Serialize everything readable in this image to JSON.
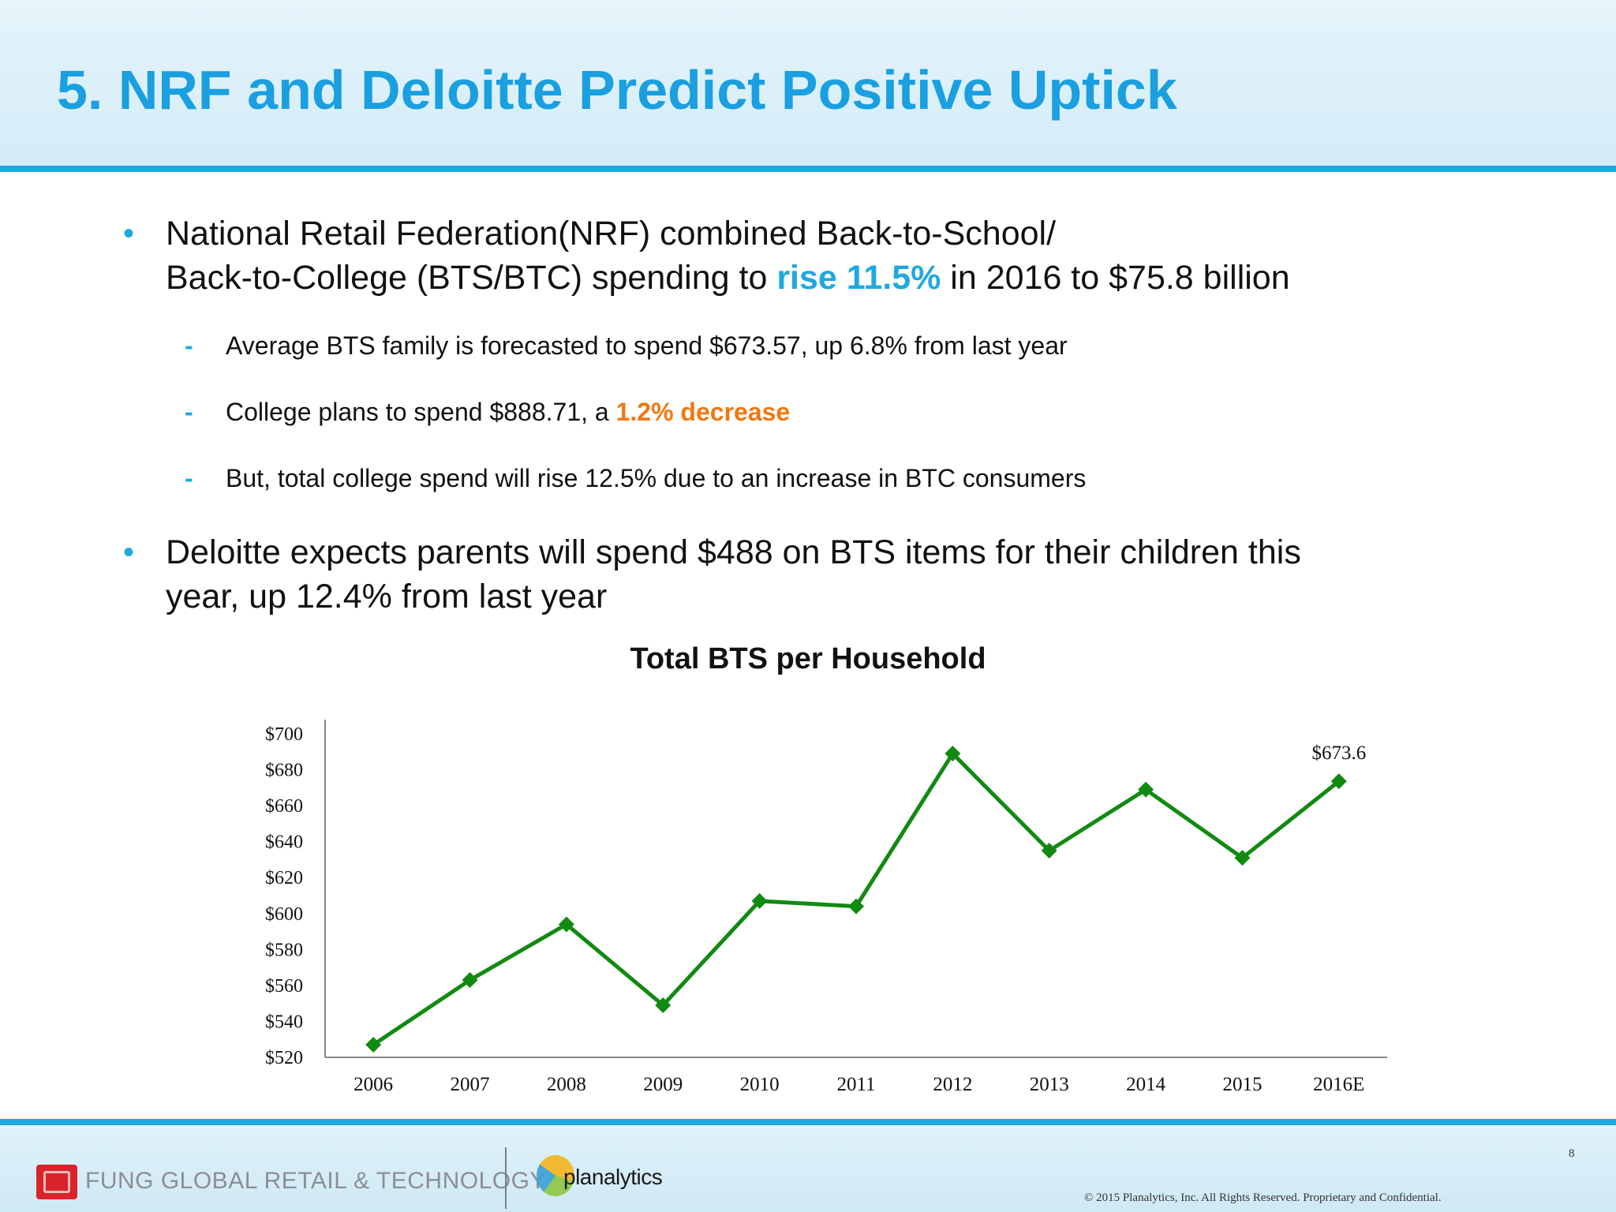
{
  "title": "5. NRF and Deloitte Predict Positive Uptick",
  "bullets": {
    "b1": {
      "line1": "National Retail Federation(NRF) combined Back-to-School/",
      "line2_pre": "Back-to-College (BTS/BTC) spending to ",
      "line2_highlight": "rise 11.5%",
      "line2_post": " in 2016 to $75.8 billion"
    },
    "b1_subs": {
      "s1": "Average BTS family is forecasted to spend $673.57, up 6.8% from last year",
      "s2_pre": "College plans to spend $888.71, a ",
      "s2_highlight": "1.2% decrease",
      "s3": "But, total college spend will rise 12.5% due to an increase in BTC consumers"
    },
    "b2": {
      "line1": "Deloitte expects parents will spend $488 on BTS items for their children this",
      "line2": "year, up 12.4% from last year"
    },
    "bullet_symbol": "•",
    "dash_symbol": "-"
  },
  "chart_data": {
    "type": "line",
    "title": "Total BTS per Household",
    "categories": [
      "2006",
      "2007",
      "2008",
      "2009",
      "2010",
      "2011",
      "2012",
      "2013",
      "2014",
      "2015",
      "2016E"
    ],
    "series": [
      {
        "values": [
          527,
          563,
          594,
          549,
          607,
          604,
          689,
          635,
          669,
          631,
          673.6
        ]
      }
    ],
    "ylim": [
      520,
      700
    ],
    "yticks": [
      520,
      540,
      560,
      580,
      600,
      620,
      640,
      660,
      680,
      700
    ],
    "ytick_labels": [
      "$520",
      "$540",
      "$560",
      "$580",
      "$600",
      "$620",
      "$640",
      "$660",
      "$680",
      "$700"
    ],
    "data_labels": [
      {
        "index": 10,
        "text": "$673.6"
      }
    ],
    "marker": "diamond",
    "line_color": "#118a11",
    "grid": false,
    "legend": "none"
  },
  "footer": {
    "company": "FUNG GLOBAL RETAIL & TECHNOLOGY",
    "partner": "planalytics",
    "copyright": "© 2015 Planalytics, Inc. All Rights Reserved. Proprietary and Confidential.",
    "page_number": "8"
  },
  "colors": {
    "accent_blue": "#1fa8e0",
    "highlight_orange": "#f07810",
    "title_blue": "#1a9fe0"
  }
}
